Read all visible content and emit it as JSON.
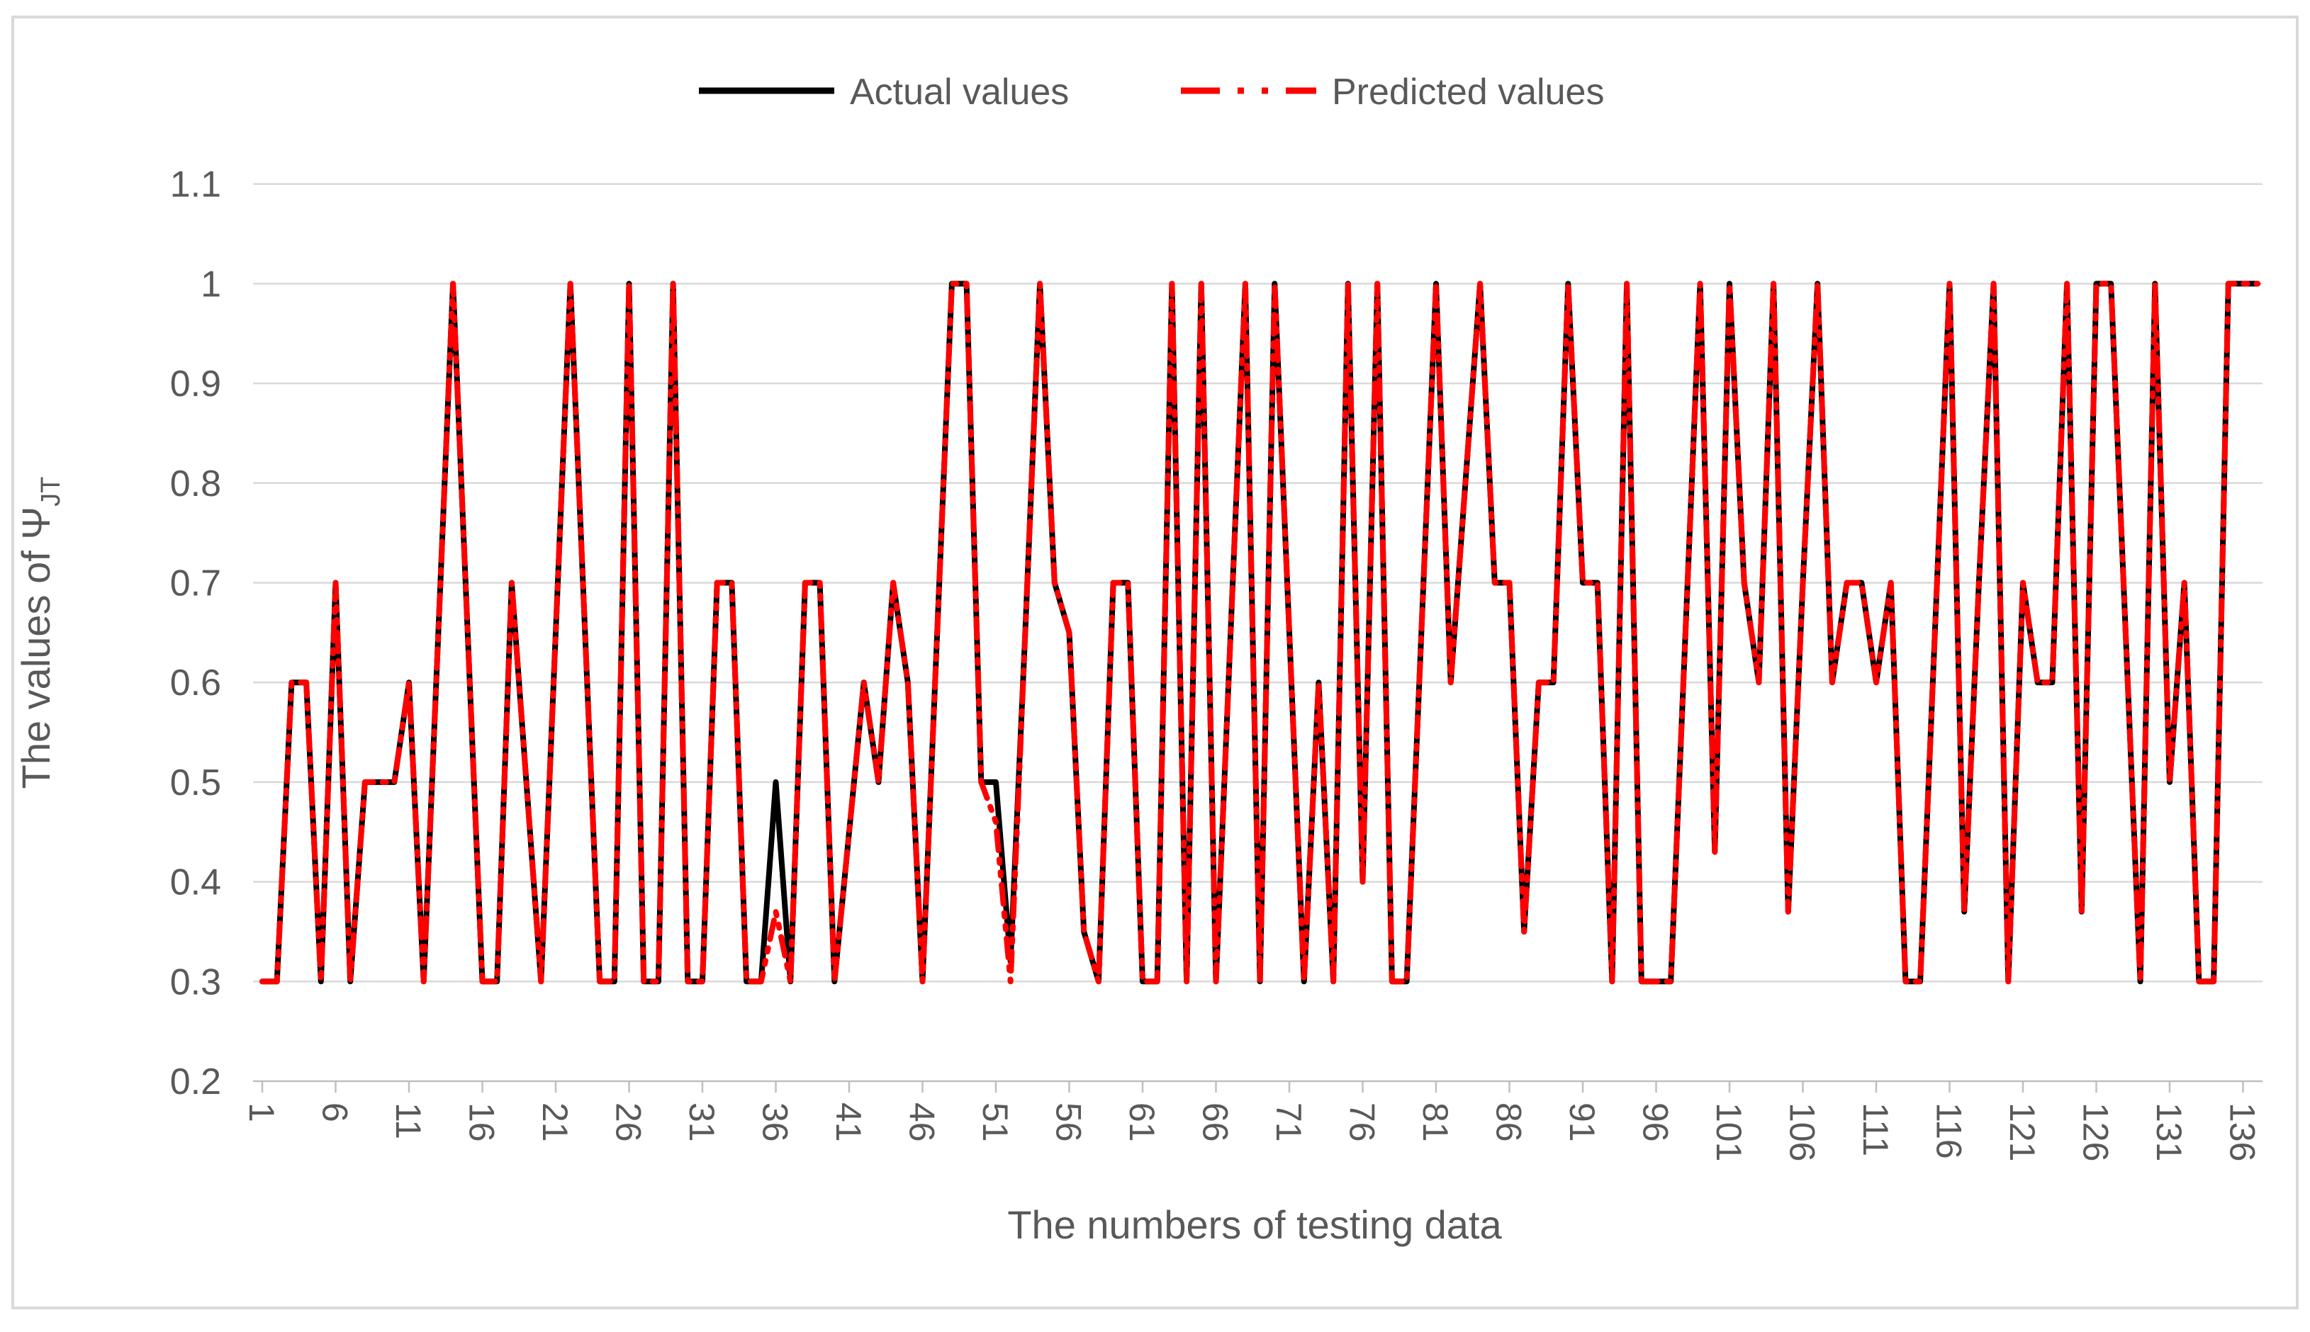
{
  "chart_data": {
    "type": "line",
    "title": "",
    "xlabel": "The numbers of testing data",
    "ylabel": "The values of Ψ",
    "ylabel_sub": "JT",
    "x_start": 1,
    "x_count": 137,
    "x_tick_labels": [
      "1",
      "6",
      "11",
      "16",
      "21",
      "26",
      "31",
      "36",
      "41",
      "46",
      "51",
      "56",
      "61",
      "66",
      "71",
      "76",
      "81",
      "86",
      "91",
      "96",
      "101",
      "106",
      "111",
      "116",
      "121",
      "126",
      "131",
      "136"
    ],
    "y_tick_labels": [
      "0.2",
      "0.3",
      "0.4",
      "0.5",
      "0.6",
      "0.7",
      "0.8",
      "0.9",
      "1",
      "1.1"
    ],
    "ylim": [
      0.2,
      1.1
    ],
    "grid": "horizontal",
    "legend_position": "top",
    "colors": {
      "actual": "#000000",
      "predicted": "#FF0000",
      "gridline": "#D9D9D9",
      "axis": "#BFBFBF",
      "text": "#595959",
      "border": "#D9D9D9"
    },
    "series": [
      {
        "name": "Actual values",
        "color": "#000000",
        "style": "solid",
        "values": [
          0.3,
          0.3,
          0.6,
          0.6,
          0.3,
          0.7,
          0.3,
          0.5,
          0.5,
          0.5,
          0.6,
          0.3,
          0.65,
          1,
          0.65,
          0.3,
          0.3,
          0.7,
          0.5,
          0.3,
          0.65,
          1,
          0.65,
          0.3,
          0.3,
          1,
          0.3,
          0.3,
          1,
          0.3,
          0.3,
          0.7,
          0.7,
          0.3,
          0.3,
          0.5,
          0.3,
          0.7,
          0.7,
          0.3,
          0.45,
          0.6,
          0.5,
          0.7,
          0.6,
          0.3,
          0.65,
          1,
          1,
          0.5,
          0.5,
          0.32,
          0.65,
          1,
          0.7,
          0.65,
          0.35,
          0.3,
          0.7,
          0.7,
          0.3,
          0.3,
          1,
          0.3,
          1,
          0.3,
          0.65,
          1,
          0.3,
          1,
          0.65,
          0.3,
          0.6,
          0.3,
          1,
          0.4,
          1,
          0.3,
          0.3,
          0.65,
          1,
          0.6,
          0.8,
          1,
          0.7,
          0.7,
          0.35,
          0.6,
          0.6,
          1,
          0.7,
          0.7,
          0.3,
          1,
          0.3,
          0.3,
          0.3,
          0.65,
          1,
          0.43,
          1,
          0.7,
          0.6,
          1,
          0.37,
          0.7,
          1,
          0.6,
          0.7,
          0.7,
          0.6,
          0.7,
          0.3,
          0.3,
          0.65,
          1,
          0.37,
          0.7,
          1,
          0.3,
          0.7,
          0.6,
          0.6,
          1,
          0.37,
          1,
          1,
          0.65,
          0.3,
          1,
          0.5,
          0.7,
          0.3,
          0.3,
          1,
          1,
          1
        ]
      },
      {
        "name": "Predicted values",
        "color": "#FF0000",
        "style": "long-dash-dot-dot",
        "values": [
          0.3,
          0.3,
          0.6,
          0.6,
          0.3,
          0.7,
          0.3,
          0.5,
          0.5,
          0.5,
          0.6,
          0.3,
          0.65,
          1,
          0.65,
          0.3,
          0.3,
          0.7,
          0.5,
          0.3,
          0.65,
          1,
          0.65,
          0.3,
          0.3,
          1,
          0.3,
          0.3,
          1,
          0.3,
          0.3,
          0.7,
          0.7,
          0.3,
          0.3,
          0.37,
          0.3,
          0.7,
          0.7,
          0.3,
          0.45,
          0.6,
          0.5,
          0.7,
          0.6,
          0.3,
          0.65,
          1,
          1,
          0.5,
          0.46,
          0.3,
          0.65,
          1,
          0.7,
          0.65,
          0.35,
          0.3,
          0.7,
          0.7,
          0.3,
          0.3,
          1,
          0.3,
          1,
          0.3,
          0.65,
          1,
          0.3,
          1,
          0.65,
          0.3,
          0.6,
          0.3,
          1,
          0.4,
          1,
          0.3,
          0.3,
          0.65,
          1,
          0.6,
          0.8,
          1,
          0.7,
          0.7,
          0.35,
          0.6,
          0.6,
          1,
          0.7,
          0.7,
          0.3,
          1,
          0.3,
          0.3,
          0.3,
          0.65,
          1,
          0.43,
          1,
          0.7,
          0.6,
          1,
          0.37,
          0.7,
          1,
          0.6,
          0.7,
          0.7,
          0.6,
          0.7,
          0.3,
          0.3,
          0.65,
          1,
          0.37,
          0.7,
          1,
          0.3,
          0.7,
          0.6,
          0.6,
          1,
          0.37,
          1,
          1,
          0.65,
          0.3,
          1,
          0.5,
          0.7,
          0.3,
          0.3,
          1,
          1,
          1
        ]
      }
    ]
  }
}
